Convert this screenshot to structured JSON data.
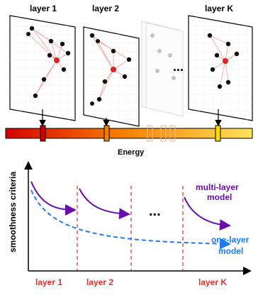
{
  "layers_panel": {
    "titles": [
      "layer 1",
      "layer 2",
      "layer K"
    ],
    "ellipsis": "...",
    "energy_label": "Energy"
  },
  "plot": {
    "ylabel": "smoothness criteria",
    "ellipsis": "...",
    "multi_line1": "multi-layer",
    "multi_line2": "model",
    "one_line1": "one-layer",
    "one_line2": "model",
    "xticks": [
      "layer 1",
      "layer 2",
      "layer K"
    ]
  },
  "colors": {
    "multi": "#6a0dad",
    "one": "#1e7bf0",
    "tick": "#e03030",
    "edge": "#f0a0a0",
    "node": "#111111",
    "highlight": "#e02020"
  }
}
